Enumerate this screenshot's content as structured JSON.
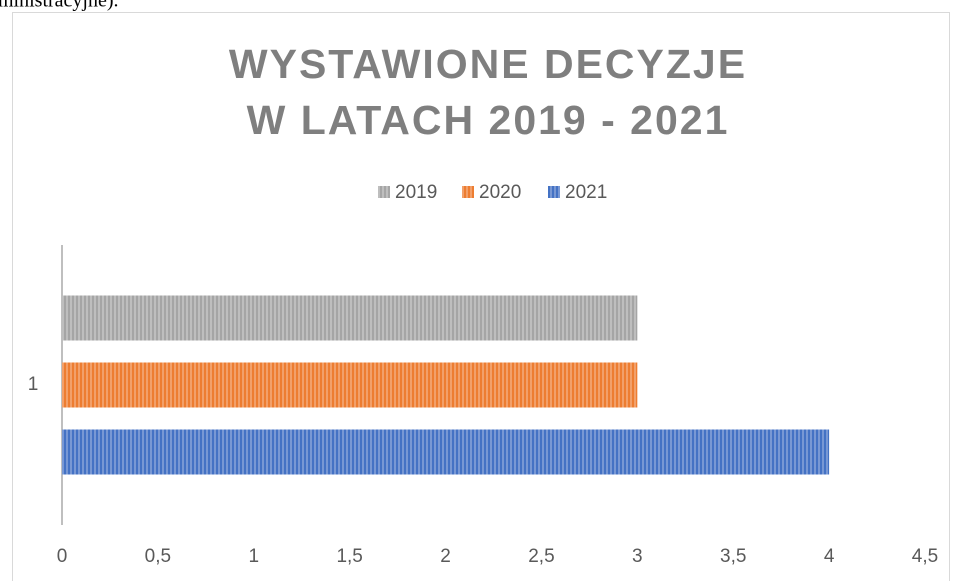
{
  "context_text": "ministracyjne).",
  "chart_data": {
    "type": "hbar",
    "title": [
      "WYSTAWIONE DECYZJE",
      "W LATACH 2019 - 2021"
    ],
    "categories": [
      "1"
    ],
    "series": [
      {
        "name": "2019",
        "color": "#a5a5a5",
        "values": [
          3
        ]
      },
      {
        "name": "2020",
        "color": "#ed7d31",
        "values": [
          3
        ]
      },
      {
        "name": "2021",
        "color": "#4472c4",
        "values": [
          4
        ]
      }
    ],
    "xlim": [
      0,
      4.5
    ],
    "xticks": [
      0,
      {
        "value": 0.5,
        "label": "0,5"
      },
      1,
      {
        "value": 1.5,
        "label": "1,5"
      },
      2,
      {
        "value": 2.5,
        "label": "2,5"
      },
      3,
      {
        "value": 3.5,
        "label": "3,5"
      },
      4,
      {
        "value": 4.5,
        "label": "4,5"
      }
    ],
    "legend": "top",
    "grid": false
  }
}
